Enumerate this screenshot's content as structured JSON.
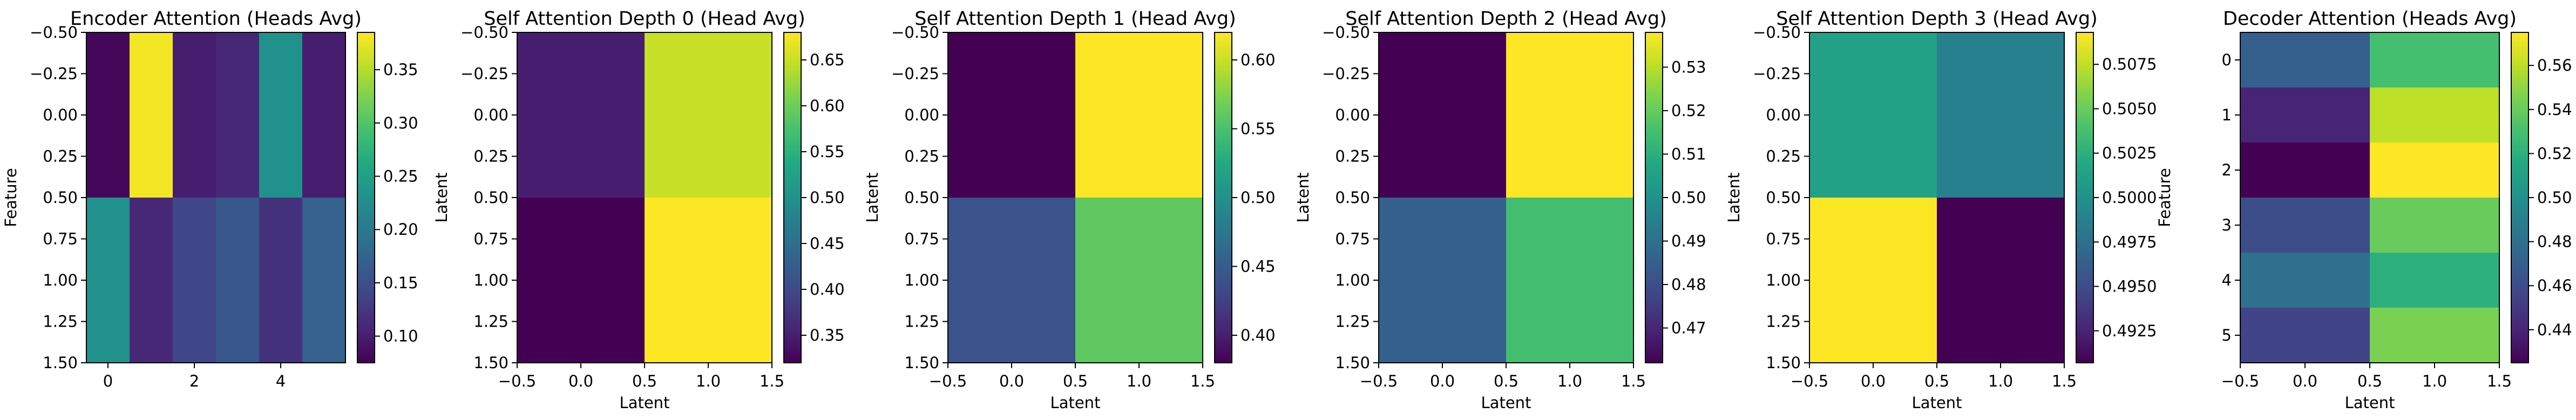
{
  "figure": {
    "background": "#ffffff",
    "colormap": "viridis"
  },
  "chart_data": [
    {
      "type": "heatmap",
      "title": "Encoder Attention (Heads Avg)",
      "xlabel": "",
      "ylabel": "Feature",
      "xlim": [
        -0.5,
        5.5
      ],
      "ylim": [
        1.5,
        -0.5
      ],
      "xticks": [
        0,
        2,
        4
      ],
      "xtick_labels": [
        "0",
        "2",
        "4"
      ],
      "yticks": [
        -0.5,
        -0.25,
        0.0,
        0.25,
        0.5,
        0.75,
        1.0,
        1.25,
        1.5
      ],
      "ytick_labels": [
        "−0.50",
        "−0.25",
        "0.00",
        "0.25",
        "0.50",
        "0.75",
        "1.00",
        "1.25",
        "1.50"
      ],
      "values": [
        [
          0.08,
          0.38,
          0.1,
          0.11,
          0.23,
          0.1
        ],
        [
          0.23,
          0.11,
          0.14,
          0.16,
          0.12,
          0.17
        ]
      ],
      "colorbar": {
        "min": 0.075,
        "max": 0.385,
        "ticks": [
          0.1,
          0.15,
          0.2,
          0.25,
          0.3,
          0.35
        ],
        "tick_labels": [
          "0.10",
          "0.15",
          "0.20",
          "0.25",
          "0.30",
          "0.35"
        ]
      }
    },
    {
      "type": "heatmap",
      "title": "Self Attention Depth 0 (Head Avg)",
      "xlabel": "Latent",
      "ylabel": "Latent",
      "xlim": [
        -0.5,
        1.5
      ],
      "ylim": [
        1.5,
        -0.5
      ],
      "xticks": [
        -0.5,
        0.0,
        0.5,
        1.0,
        1.5
      ],
      "xtick_labels": [
        "−0.5",
        "0.0",
        "0.5",
        "1.0",
        "1.5"
      ],
      "yticks": [
        -0.5,
        -0.25,
        0.0,
        0.25,
        0.5,
        0.75,
        1.0,
        1.25,
        1.5
      ],
      "ytick_labels": [
        "−0.50",
        "−0.25",
        "0.00",
        "0.25",
        "0.50",
        "0.75",
        "1.00",
        "1.25",
        "1.50"
      ],
      "values": [
        [
          0.35,
          0.65
        ],
        [
          0.32,
          0.68
        ]
      ],
      "colorbar": {
        "min": 0.32,
        "max": 0.68,
        "ticks": [
          0.35,
          0.4,
          0.45,
          0.5,
          0.55,
          0.6,
          0.65
        ],
        "tick_labels": [
          "0.35",
          "0.40",
          "0.45",
          "0.50",
          "0.55",
          "0.60",
          "0.65"
        ]
      }
    },
    {
      "type": "heatmap",
      "title": "Self Attention Depth 1 (Head Avg)",
      "xlabel": "Latent",
      "ylabel": "Latent",
      "xlim": [
        -0.5,
        1.5
      ],
      "ylim": [
        1.5,
        -0.5
      ],
      "xticks": [
        -0.5,
        0.0,
        0.5,
        1.0,
        1.5
      ],
      "xtick_labels": [
        "−0.5",
        "0.0",
        "0.5",
        "1.0",
        "1.5"
      ],
      "yticks": [
        -0.5,
        -0.25,
        0.0,
        0.25,
        0.5,
        0.75,
        1.0,
        1.25,
        1.5
      ],
      "ytick_labels": [
        "−0.50",
        "−0.25",
        "0.00",
        "0.25",
        "0.50",
        "0.75",
        "1.00",
        "1.25",
        "1.50"
      ],
      "values": [
        [
          0.38,
          0.62
        ],
        [
          0.44,
          0.56
        ]
      ],
      "colorbar": {
        "min": 0.38,
        "max": 0.62,
        "ticks": [
          0.4,
          0.45,
          0.5,
          0.55,
          0.6
        ],
        "tick_labels": [
          "0.40",
          "0.45",
          "0.50",
          "0.55",
          "0.60"
        ]
      }
    },
    {
      "type": "heatmap",
      "title": "Self Attention Depth 2 (Head Avg)",
      "xlabel": "Latent",
      "ylabel": "Latent",
      "xlim": [
        -0.5,
        1.5
      ],
      "ylim": [
        1.5,
        -0.5
      ],
      "xticks": [
        -0.5,
        0.0,
        0.5,
        1.0,
        1.5
      ],
      "xtick_labels": [
        "−0.5",
        "0.0",
        "0.5",
        "1.0",
        "1.5"
      ],
      "yticks": [
        -0.5,
        -0.25,
        0.0,
        0.25,
        0.5,
        0.75,
        1.0,
        1.25,
        1.5
      ],
      "ytick_labels": [
        "−0.50",
        "−0.25",
        "0.00",
        "0.25",
        "0.50",
        "0.75",
        "1.00",
        "1.25",
        "1.50"
      ],
      "values": [
        [
          0.462,
          0.538
        ],
        [
          0.485,
          0.515
        ]
      ],
      "colorbar": {
        "min": 0.462,
        "max": 0.538,
        "ticks": [
          0.47,
          0.48,
          0.49,
          0.5,
          0.51,
          0.52,
          0.53
        ],
        "tick_labels": [
          "0.47",
          "0.48",
          "0.49",
          "0.50",
          "0.51",
          "0.52",
          "0.53"
        ]
      }
    },
    {
      "type": "heatmap",
      "title": "Self Attention Depth 3 (Head Avg)",
      "xlabel": "Latent",
      "ylabel": "Latent",
      "xlim": [
        -0.5,
        1.5
      ],
      "ylim": [
        1.5,
        -0.5
      ],
      "xticks": [
        -0.5,
        0.0,
        0.5,
        1.0,
        1.5
      ],
      "xtick_labels": [
        "−0.5",
        "0.0",
        "0.5",
        "1.0",
        "1.5"
      ],
      "yticks": [
        -0.5,
        -0.25,
        0.0,
        0.25,
        0.5,
        0.75,
        1.0,
        1.25,
        1.5
      ],
      "ytick_labels": [
        "−0.50",
        "−0.25",
        "0.00",
        "0.25",
        "0.50",
        "0.75",
        "1.00",
        "1.25",
        "1.50"
      ],
      "values": [
        [
          0.5013,
          0.4987
        ],
        [
          0.5093,
          0.4907
        ]
      ],
      "colorbar": {
        "min": 0.4907,
        "max": 0.5093,
        "ticks": [
          0.4925,
          0.495,
          0.4975,
          0.5,
          0.5025,
          0.505,
          0.5075
        ],
        "tick_labels": [
          "0.4925",
          "0.4950",
          "0.4975",
          "0.5000",
          "0.5025",
          "0.5050",
          "0.5075"
        ]
      }
    },
    {
      "type": "heatmap",
      "title": "Decoder Attention (Heads Avg)",
      "xlabel": "Latent",
      "ylabel": "Feature",
      "xlim": [
        -0.5,
        1.5
      ],
      "ylim": [
        5.5,
        -0.5
      ],
      "xticks": [
        -0.5,
        0.0,
        0.5,
        1.0,
        1.5
      ],
      "xtick_labels": [
        "−0.5",
        "0.0",
        "0.5",
        "1.0",
        "1.5"
      ],
      "yticks": [
        0,
        1,
        2,
        3,
        4,
        5
      ],
      "ytick_labels": [
        "0",
        "1",
        "2",
        "3",
        "4",
        "5"
      ],
      "values": [
        [
          0.47,
          0.53
        ],
        [
          0.44,
          0.56
        ],
        [
          0.425,
          0.575
        ],
        [
          0.46,
          0.54
        ],
        [
          0.48,
          0.52
        ],
        [
          0.455,
          0.545
        ]
      ],
      "colorbar": {
        "min": 0.425,
        "max": 0.575,
        "ticks": [
          0.44,
          0.46,
          0.48,
          0.5,
          0.52,
          0.54,
          0.56
        ],
        "tick_labels": [
          "0.44",
          "0.46",
          "0.48",
          "0.50",
          "0.52",
          "0.54",
          "0.56"
        ]
      }
    }
  ]
}
